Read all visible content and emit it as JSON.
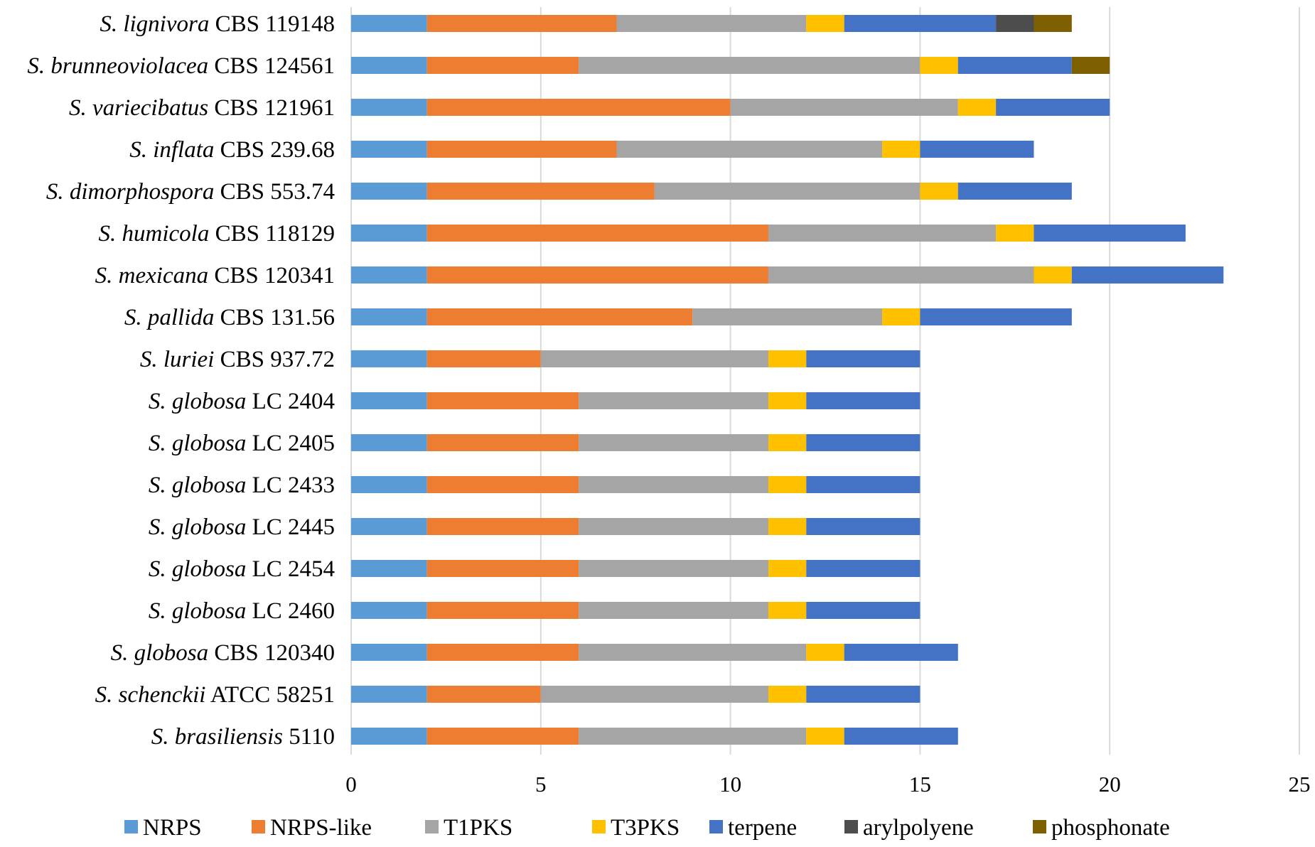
{
  "chart_data": {
    "type": "bar",
    "orientation": "horizontal",
    "stacked": true,
    "title": "",
    "xlabel": "",
    "ylabel": "",
    "xlim": [
      0,
      25
    ],
    "xticks": [
      0,
      5,
      10,
      15,
      20,
      25
    ],
    "grid": "vertical",
    "legend_position": "bottom",
    "categories": [
      {
        "species": "S. lignivora",
        "strain": "CBS 119148"
      },
      {
        "species": "S. brunneoviolacea",
        "strain": "CBS 124561"
      },
      {
        "species": "S. variecibatus",
        "strain": "CBS 121961"
      },
      {
        "species": "S. inflata",
        "strain": "CBS 239.68"
      },
      {
        "species": "S. dimorphospora",
        "strain": "CBS 553.74"
      },
      {
        "species": "S. humicola",
        "strain": "CBS 118129"
      },
      {
        "species": "S. mexicana",
        "strain": "CBS 120341"
      },
      {
        "species": "S. pallida",
        "strain": "CBS 131.56"
      },
      {
        "species": "S. luriei",
        "strain": "CBS 937.72"
      },
      {
        "species": "S. globosa",
        "strain": "LC 2404"
      },
      {
        "species": "S. globosa",
        "strain": "LC 2405"
      },
      {
        "species": "S. globosa",
        "strain": "LC 2433"
      },
      {
        "species": "S. globosa",
        "strain": "LC 2445"
      },
      {
        "species": "S. globosa",
        "strain": "LC 2454"
      },
      {
        "species": "S. globosa",
        "strain": "LC 2460"
      },
      {
        "species": "S. globosa",
        "strain": "CBS 120340"
      },
      {
        "species": "S. schenckii",
        "strain": "ATCC 58251"
      },
      {
        "species": "S. brasiliensis",
        "strain": "5110"
      }
    ],
    "series": [
      {
        "name": "NRPS",
        "color": "#5B9BD5",
        "values": [
          2,
          2,
          2,
          2,
          2,
          2,
          2,
          2,
          2,
          2,
          2,
          2,
          2,
          2,
          2,
          2,
          2,
          2
        ]
      },
      {
        "name": "NRPS-like",
        "color": "#ED7D31",
        "values": [
          5,
          4,
          8,
          5,
          6,
          9,
          9,
          7,
          3,
          4,
          4,
          4,
          4,
          4,
          4,
          4,
          3,
          4
        ]
      },
      {
        "name": "T1PKS",
        "color": "#A5A5A5",
        "values": [
          5,
          9,
          6,
          7,
          7,
          6,
          7,
          5,
          6,
          5,
          5,
          5,
          5,
          5,
          5,
          6,
          6,
          6
        ]
      },
      {
        "name": "T3PKS",
        "color": "#FFC000",
        "values": [
          1,
          1,
          1,
          1,
          1,
          1,
          1,
          1,
          1,
          1,
          1,
          1,
          1,
          1,
          1,
          1,
          1,
          1
        ]
      },
      {
        "name": "terpene",
        "color": "#4472C4",
        "values": [
          4,
          3,
          3,
          3,
          3,
          4,
          4,
          4,
          3,
          3,
          3,
          3,
          3,
          3,
          3,
          3,
          3,
          3
        ]
      },
      {
        "name": "arylpolyene",
        "color": "#4D4D4D",
        "values": [
          1,
          0,
          0,
          0,
          0,
          0,
          0,
          0,
          0,
          0,
          0,
          0,
          0,
          0,
          0,
          0,
          0,
          0
        ]
      },
      {
        "name": "phosphonate",
        "color": "#7F6000",
        "values": [
          1,
          1,
          0,
          0,
          0,
          0,
          0,
          0,
          0,
          0,
          0,
          0,
          0,
          0,
          0,
          0,
          0,
          0
        ]
      }
    ]
  }
}
